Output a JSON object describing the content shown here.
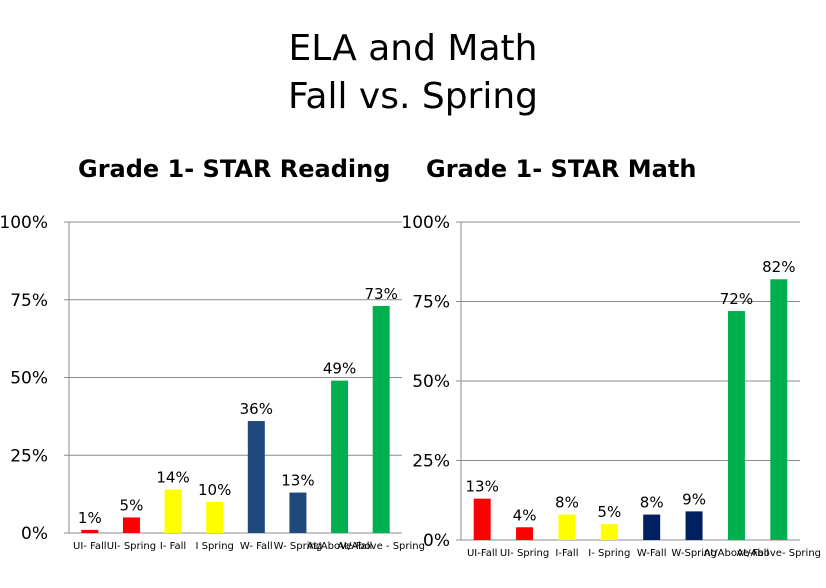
{
  "title": {
    "line1": "ELA and Math",
    "line2": "Fall vs. Spring"
  },
  "chart_data": [
    {
      "type": "bar",
      "title": "Grade 1- STAR Reading",
      "categories": [
        "UI- Fall",
        "UI- Spring",
        "I- Fall",
        "I Spring",
        "W- Fall",
        "W- Spring",
        "At/Above-Fall",
        "At/Above - Spring"
      ],
      "values": [
        1,
        5,
        14,
        10,
        36,
        13,
        49,
        73
      ],
      "data_labels": [
        "1%",
        "5%",
        "14%",
        "10%",
        "36%",
        "13%",
        "49%",
        "73%"
      ],
      "colors": [
        "#ff0000",
        "#ff0000",
        "#ffff00",
        "#ffff00",
        "#1f497d",
        "#1f497d",
        "#00b050",
        "#00b050"
      ],
      "ylim": [
        0,
        100
      ],
      "yticks": [
        "0%",
        "25%",
        "50%",
        "75%",
        "100%"
      ],
      "grid": true
    },
    {
      "type": "bar",
      "title": "Grade 1- STAR Math",
      "categories": [
        "UI-Fall",
        "UI- Spring",
        "I-Fall",
        "I- Spring",
        "W-Fall",
        "W-Spring",
        "At/Above-Fall",
        "At/Above- Spring"
      ],
      "values": [
        13,
        4,
        8,
        5,
        8,
        9,
        72,
        82
      ],
      "data_labels": [
        "13%",
        "4%",
        "8%",
        "5%",
        "8%",
        "9%",
        "72%",
        "82%"
      ],
      "colors": [
        "#ff0000",
        "#ff0000",
        "#ffff00",
        "#ffff00",
        "#002060",
        "#002060",
        "#00b050",
        "#00b050"
      ],
      "ylim": [
        0,
        100
      ],
      "yticks": [
        "0%",
        "25%",
        "50%",
        "75%",
        "100%"
      ],
      "grid": true
    }
  ]
}
